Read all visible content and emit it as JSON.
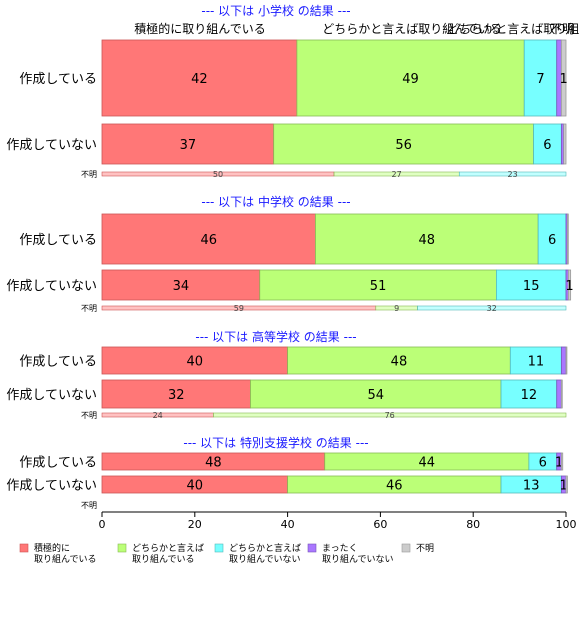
{
  "chart_data": {
    "type": "bar",
    "orientation": "horizontal",
    "stacked": true,
    "x_axis": {
      "min": 0,
      "max": 100,
      "ticks": [
        0,
        20,
        40,
        60,
        80,
        100
      ]
    },
    "top_labels": [
      "積極的に取り組んでいる",
      "どちらかと言えば取り組んでいる",
      "どちらかと言えば取り組んでいない",
      "不明"
    ],
    "legend": {
      "position": "bottom",
      "items": [
        {
          "label": "積極的に\n取り組んでいる",
          "color": "#ff7777"
        },
        {
          "label": "どちらかと言えば\n取り組んでいる",
          "color": "#bbff77"
        },
        {
          "label": "どちらかと言えば\n取り組んでいない",
          "color": "#77ffff"
        },
        {
          "label": "まったく\n取り組んでいない",
          "color": "#aa77ff"
        },
        {
          "label": "不明",
          "color": "#cccccc"
        }
      ]
    },
    "groups": [
      {
        "title": "--- 以下は 小学校 の結果 ---",
        "rows": [
          {
            "label": "作成している",
            "values": [
              42,
              49,
              7,
              1,
              1
            ],
            "value_labels": [
              "42",
              "49",
              "7",
              "",
              "1"
            ]
          },
          {
            "label": "作成していない",
            "values": [
              37,
              56,
              6,
              0.5,
              0.5
            ],
            "value_labels": [
              "37",
              "56",
              "6",
              "",
              ""
            ]
          }
        ],
        "unknown": {
          "label": "不明",
          "values": [
            50,
            27,
            23,
            0,
            0
          ],
          "value_labels": [
            "50",
            "27",
            "23",
            "",
            ""
          ]
        }
      },
      {
        "title": "--- 以下は 中学校 の結果 ---",
        "rows": [
          {
            "label": "作成している",
            "values": [
              46,
              48,
              6,
              0.3,
              0.2
            ],
            "value_labels": [
              "46",
              "48",
              "6",
              "",
              ""
            ]
          },
          {
            "label": "作成していない",
            "values": [
              34,
              51,
              15,
              0.5,
              0.5
            ],
            "value_labels": [
              "34",
              "51",
              "15",
              "",
              "1"
            ]
          }
        ],
        "unknown": {
          "label": "不明",
          "values": [
            59,
            9,
            32,
            0,
            0
          ],
          "value_labels": [
            "59",
            "9",
            "32",
            "",
            ""
          ]
        }
      },
      {
        "title": "--- 以下は 高等学校 の結果 ---",
        "rows": [
          {
            "label": "作成している",
            "values": [
              40,
              48,
              11,
              1,
              0.2
            ],
            "value_labels": [
              "40",
              "48",
              "11",
              "",
              ""
            ]
          },
          {
            "label": "作成していない",
            "values": [
              32,
              54,
              12,
              1,
              0.2
            ],
            "value_labels": [
              "32",
              "54",
              "12",
              "",
              ""
            ]
          }
        ],
        "unknown": {
          "label": "不明",
          "values": [
            24,
            76,
            0,
            0,
            0
          ],
          "value_labels": [
            "24",
            "76",
            "",
            "",
            ""
          ]
        }
      },
      {
        "title": "--- 以下は 特別支援学校 の結果 ---",
        "rows": [
          {
            "label": "作成している",
            "values": [
              48,
              44,
              6,
              1,
              0.3
            ],
            "value_labels": [
              "48",
              "44",
              "6",
              "1",
              ""
            ]
          },
          {
            "label": "作成していない",
            "values": [
              40,
              46,
              13,
              1,
              0.3
            ],
            "value_labels": [
              "40",
              "46",
              "13",
              "1",
              ""
            ]
          }
        ],
        "unknown": {
          "label": "不明",
          "values": [],
          "value_labels": []
        }
      }
    ]
  }
}
